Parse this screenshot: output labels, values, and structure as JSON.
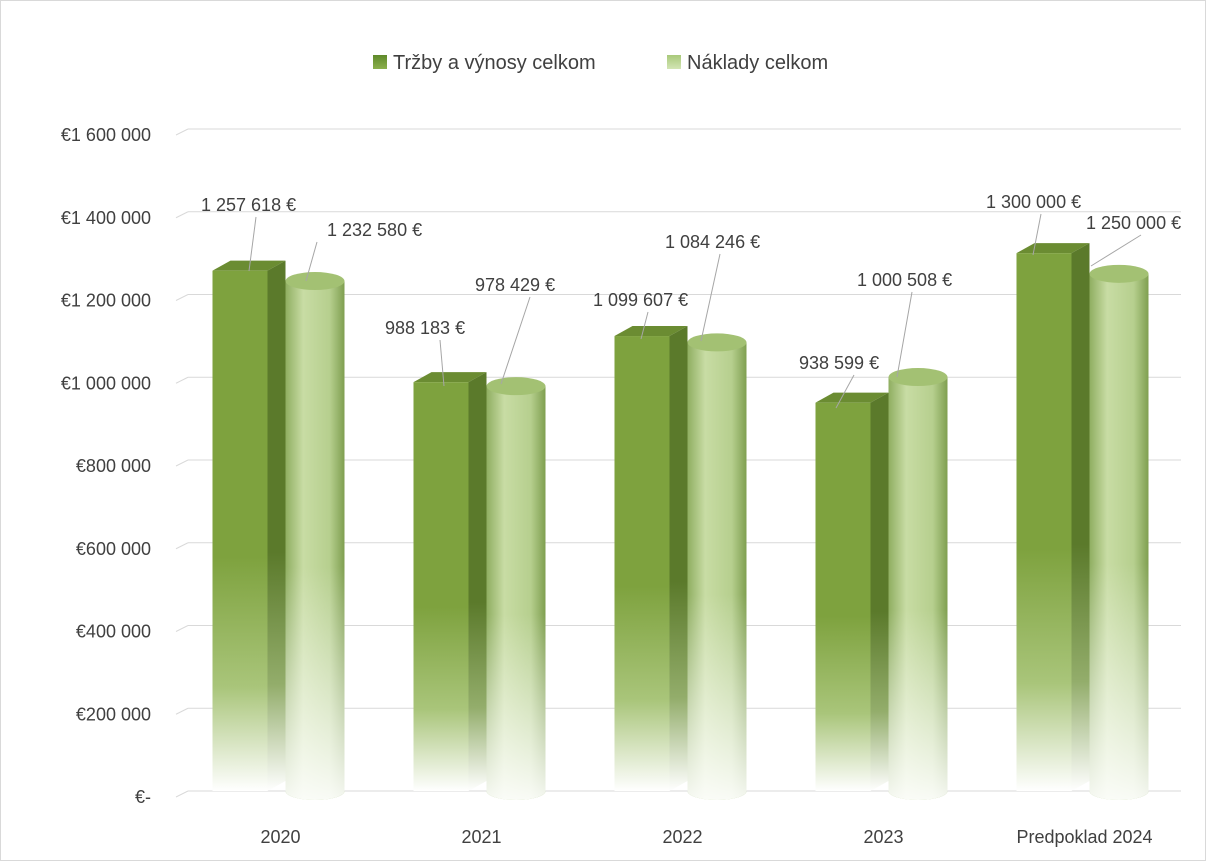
{
  "chart_data": {
    "type": "bar",
    "categories": [
      "2020",
      "2021",
      "2022",
      "2023",
      "Predpoklad 2024"
    ],
    "series": [
      {
        "name": "Tržby a výnosy celkom",
        "values": [
          1257618,
          988183,
          1099607,
          938599,
          1300000
        ],
        "labels": [
          "1 257 618 €",
          "988 183 €",
          "1 099 607 €",
          "938 599 €",
          "1 300 000 €"
        ],
        "color": "#7a9e3d"
      },
      {
        "name": "Náklady celkom",
        "values": [
          1232580,
          978429,
          1084246,
          1000508,
          1250000
        ],
        "labels": [
          "1 232 580 €",
          "978 429 €",
          "1 084 246 €",
          "1 000 508 €",
          "1 250 000 €"
        ],
        "color": "#b5d08a"
      }
    ],
    "y_ticks": [
      {
        "value": 0,
        "label": "€-"
      },
      {
        "value": 200000,
        "label": "€200 000"
      },
      {
        "value": 400000,
        "label": "€400 000"
      },
      {
        "value": 600000,
        "label": "€600 000"
      },
      {
        "value": 800000,
        "label": "€800 000"
      },
      {
        "value": 1000000,
        "label": "€1 000 000"
      },
      {
        "value": 1200000,
        "label": "€1 200 000"
      },
      {
        "value": 1400000,
        "label": "€1 400 000"
      },
      {
        "value": 1600000,
        "label": "€1 600 000"
      }
    ],
    "ylim": [
      0,
      1600000
    ],
    "grid": true,
    "legend_position": "top-center",
    "style": "3d-columns-and-cylinders"
  }
}
